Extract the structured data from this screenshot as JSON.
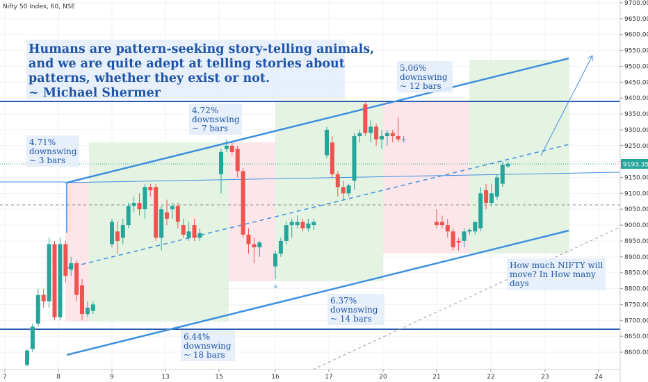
{
  "header": {
    "title": "Nifty 50 Index, 60, NSE"
  },
  "price_badge": "9193.35",
  "colors": {
    "up": "#26a69a",
    "down": "#ef5350",
    "trend": "#3d8fe0",
    "hline": "#2a5db0",
    "pink_zone": "#fde0e3",
    "green_zone": "#dff0dc",
    "label_bg": "#e4eefa",
    "label_text": "#1f55a8"
  },
  "quote_lines": [
    "Humans are pattern-seeking story-telling animals,",
    "and we are quite adept at telling stories about",
    "patterns, whether they exist or not.",
    "~ Michael Shermer"
  ],
  "annotations": [
    {
      "lines": [
        "4.71%",
        "downswing",
        "~ 3 bars"
      ]
    },
    {
      "lines": [
        "4.72%",
        "downswing",
        "~ 7 bars"
      ]
    },
    {
      "lines": [
        "5.06%",
        "downswing",
        "~ 12 bars"
      ]
    },
    {
      "lines": [
        "6.44%",
        "downswing",
        "~ 18 bars"
      ]
    },
    {
      "lines": [
        "6.37%",
        "downswing",
        "~ 14 bars"
      ]
    },
    {
      "lines": [
        "How much NIFTY will",
        "move? In How many",
        "days"
      ]
    }
  ],
  "chart_data": {
    "type": "candlestick",
    "title": "Nifty 50 Index, 60, NSE",
    "y_axis_side": "right",
    "y_ticks": [
      8600,
      8650,
      8700,
      8750,
      8800,
      8850,
      8900,
      8950,
      9000,
      9050,
      9100,
      9150,
      9200,
      9250,
      9300,
      9350,
      9400,
      9450,
      9500,
      9550,
      9600,
      9650,
      9700
    ],
    "ylim": [
      8570,
      9710
    ],
    "x_ticks": [
      "7",
      "8",
      "9",
      "13",
      "15",
      "16",
      "17",
      "20",
      "21",
      "22",
      "23",
      "24"
    ],
    "last_price": 9193.35,
    "horizontal_levels": [
      9390,
      8673
    ],
    "candles": [
      {
        "o": 8560,
        "h": 8610,
        "l": 8555,
        "c": 8605
      },
      {
        "o": 8610,
        "h": 8690,
        "l": 8600,
        "c": 8680
      },
      {
        "o": 8690,
        "h": 8800,
        "l": 8680,
        "c": 8780
      },
      {
        "o": 8780,
        "h": 8800,
        "l": 8740,
        "c": 8760
      },
      {
        "o": 8760,
        "h": 8960,
        "l": 8740,
        "c": 8940
      },
      {
        "o": 8940,
        "h": 8950,
        "l": 8700,
        "c": 8710
      },
      {
        "o": 8710,
        "h": 8960,
        "l": 8700,
        "c": 8940
      },
      {
        "o": 8940,
        "h": 8950,
        "l": 8820,
        "c": 8840
      },
      {
        "o": 8860,
        "h": 8900,
        "l": 8840,
        "c": 8880
      },
      {
        "o": 8880,
        "h": 8890,
        "l": 8760,
        "c": 8780
      },
      {
        "o": 8810,
        "h": 8830,
        "l": 8700,
        "c": 8720
      },
      {
        "o": 8720,
        "h": 8760,
        "l": 8710,
        "c": 8740
      },
      {
        "o": 8730,
        "h": 8760,
        "l": 8720,
        "c": 8750
      },
      {
        "o": 8940,
        "h": 9020,
        "l": 8930,
        "c": 9010
      },
      {
        "o": 8980,
        "h": 9010,
        "l": 8910,
        "c": 8950
      },
      {
        "o": 8960,
        "h": 9020,
        "l": 8940,
        "c": 9000
      },
      {
        "o": 9000,
        "h": 9070,
        "l": 8990,
        "c": 9060
      },
      {
        "o": 9060,
        "h": 9090,
        "l": 9040,
        "c": 9070
      },
      {
        "o": 9070,
        "h": 9100,
        "l": 9030,
        "c": 9050
      },
      {
        "o": 9050,
        "h": 9130,
        "l": 9020,
        "c": 9120
      },
      {
        "o": 9120,
        "h": 9130,
        "l": 9090,
        "c": 9110
      },
      {
        "o": 9120,
        "h": 9130,
        "l": 8950,
        "c": 8960
      },
      {
        "o": 8960,
        "h": 9060,
        "l": 8920,
        "c": 9050
      },
      {
        "o": 9040,
        "h": 9080,
        "l": 9000,
        "c": 9020
      },
      {
        "o": 9050,
        "h": 9070,
        "l": 9020,
        "c": 9060
      },
      {
        "o": 9060,
        "h": 9070,
        "l": 8990,
        "c": 9010
      },
      {
        "o": 9000,
        "h": 9020,
        "l": 8960,
        "c": 8970
      },
      {
        "o": 8960,
        "h": 9010,
        "l": 8950,
        "c": 8980
      },
      {
        "o": 9000,
        "h": 9020,
        "l": 8950,
        "c": 8960
      },
      {
        "o": 8960,
        "h": 8990,
        "l": 8950,
        "c": 8975
      },
      {
        "o": 9160,
        "h": 9240,
        "l": 9100,
        "c": 9230
      },
      {
        "o": 9240,
        "h": 9270,
        "l": 9230,
        "c": 9250
      },
      {
        "o": 9250,
        "h": 9260,
        "l": 9220,
        "c": 9230
      },
      {
        "o": 9240,
        "h": 9250,
        "l": 9150,
        "c": 9170
      },
      {
        "o": 9170,
        "h": 9180,
        "l": 8960,
        "c": 8970
      },
      {
        "o": 8970,
        "h": 8990,
        "l": 8910,
        "c": 8940
      },
      {
        "o": 8940,
        "h": 8960,
        "l": 8880,
        "c": 8930
      },
      {
        "o": 8930,
        "h": 8950,
        "l": 8900,
        "c": 8945
      },
      {
        "o": 8870,
        "h": 8920,
        "l": 8830,
        "c": 8910
      },
      {
        "o": 8910,
        "h": 8960,
        "l": 8900,
        "c": 8950
      },
      {
        "o": 8950,
        "h": 9010,
        "l": 8940,
        "c": 9000
      },
      {
        "o": 9000,
        "h": 9020,
        "l": 8960,
        "c": 9010
      },
      {
        "o": 9000,
        "h": 9030,
        "l": 8990,
        "c": 9010
      },
      {
        "o": 9010,
        "h": 9020,
        "l": 8980,
        "c": 8990
      },
      {
        "o": 8990,
        "h": 9020,
        "l": 8980,
        "c": 9005
      },
      {
        "o": 9000,
        "h": 9020,
        "l": 8985,
        "c": 9010
      },
      {
        "o": 9220,
        "h": 9310,
        "l": 9210,
        "c": 9300
      },
      {
        "o": 9260,
        "h": 9280,
        "l": 9150,
        "c": 9160
      },
      {
        "o": 9160,
        "h": 9170,
        "l": 9090,
        "c": 9120
      },
      {
        "o": 9120,
        "h": 9140,
        "l": 9080,
        "c": 9100
      },
      {
        "o": 9100,
        "h": 9130,
        "l": 9090,
        "c": 9125
      },
      {
        "o": 9140,
        "h": 9290,
        "l": 9110,
        "c": 9280
      },
      {
        "o": 9280,
        "h": 9300,
        "l": 9260,
        "c": 9290
      },
      {
        "o": 9380,
        "h": 9390,
        "l": 9280,
        "c": 9290
      },
      {
        "o": 9290,
        "h": 9330,
        "l": 9260,
        "c": 9310
      },
      {
        "o": 9310,
        "h": 9320,
        "l": 9250,
        "c": 9270
      },
      {
        "o": 9270,
        "h": 9300,
        "l": 9240,
        "c": 9280
      },
      {
        "o": 9280,
        "h": 9300,
        "l": 9250,
        "c": 9290
      },
      {
        "o": 9290,
        "h": 9300,
        "l": 9260,
        "c": 9280
      },
      {
        "o": 9280,
        "h": 9340,
        "l": 9260,
        "c": 9270
      },
      {
        "o": 9270,
        "h": 9280,
        "l": 9260,
        "c": 9270
      },
      {
        "o": 9010,
        "h": 9050,
        "l": 8990,
        "c": 9000
      },
      {
        "o": 9010,
        "h": 9030,
        "l": 8990,
        "c": 9000
      },
      {
        "o": 9000,
        "h": 9020,
        "l": 8960,
        "c": 8980
      },
      {
        "o": 8980,
        "h": 8990,
        "l": 8920,
        "c": 8930
      },
      {
        "o": 8950,
        "h": 8960,
        "l": 8920,
        "c": 8945
      },
      {
        "o": 8950,
        "h": 8990,
        "l": 8930,
        "c": 8980
      },
      {
        "o": 8980,
        "h": 8990,
        "l": 8970,
        "c": 8985
      },
      {
        "o": 8980,
        "h": 9010,
        "l": 8970,
        "c": 9010
      },
      {
        "o": 8990,
        "h": 9120,
        "l": 8980,
        "c": 9100
      },
      {
        "o": 9110,
        "h": 9130,
        "l": 9050,
        "c": 9070
      },
      {
        "o": 9070,
        "h": 9130,
        "l": 9060,
        "c": 9100
      },
      {
        "o": 9090,
        "h": 9160,
        "l": 9080,
        "c": 9150
      },
      {
        "o": 9130,
        "h": 9200,
        "l": 9120,
        "c": 9190
      },
      {
        "o": 9185,
        "h": 9200,
        "l": 9180,
        "c": 9193
      }
    ]
  }
}
